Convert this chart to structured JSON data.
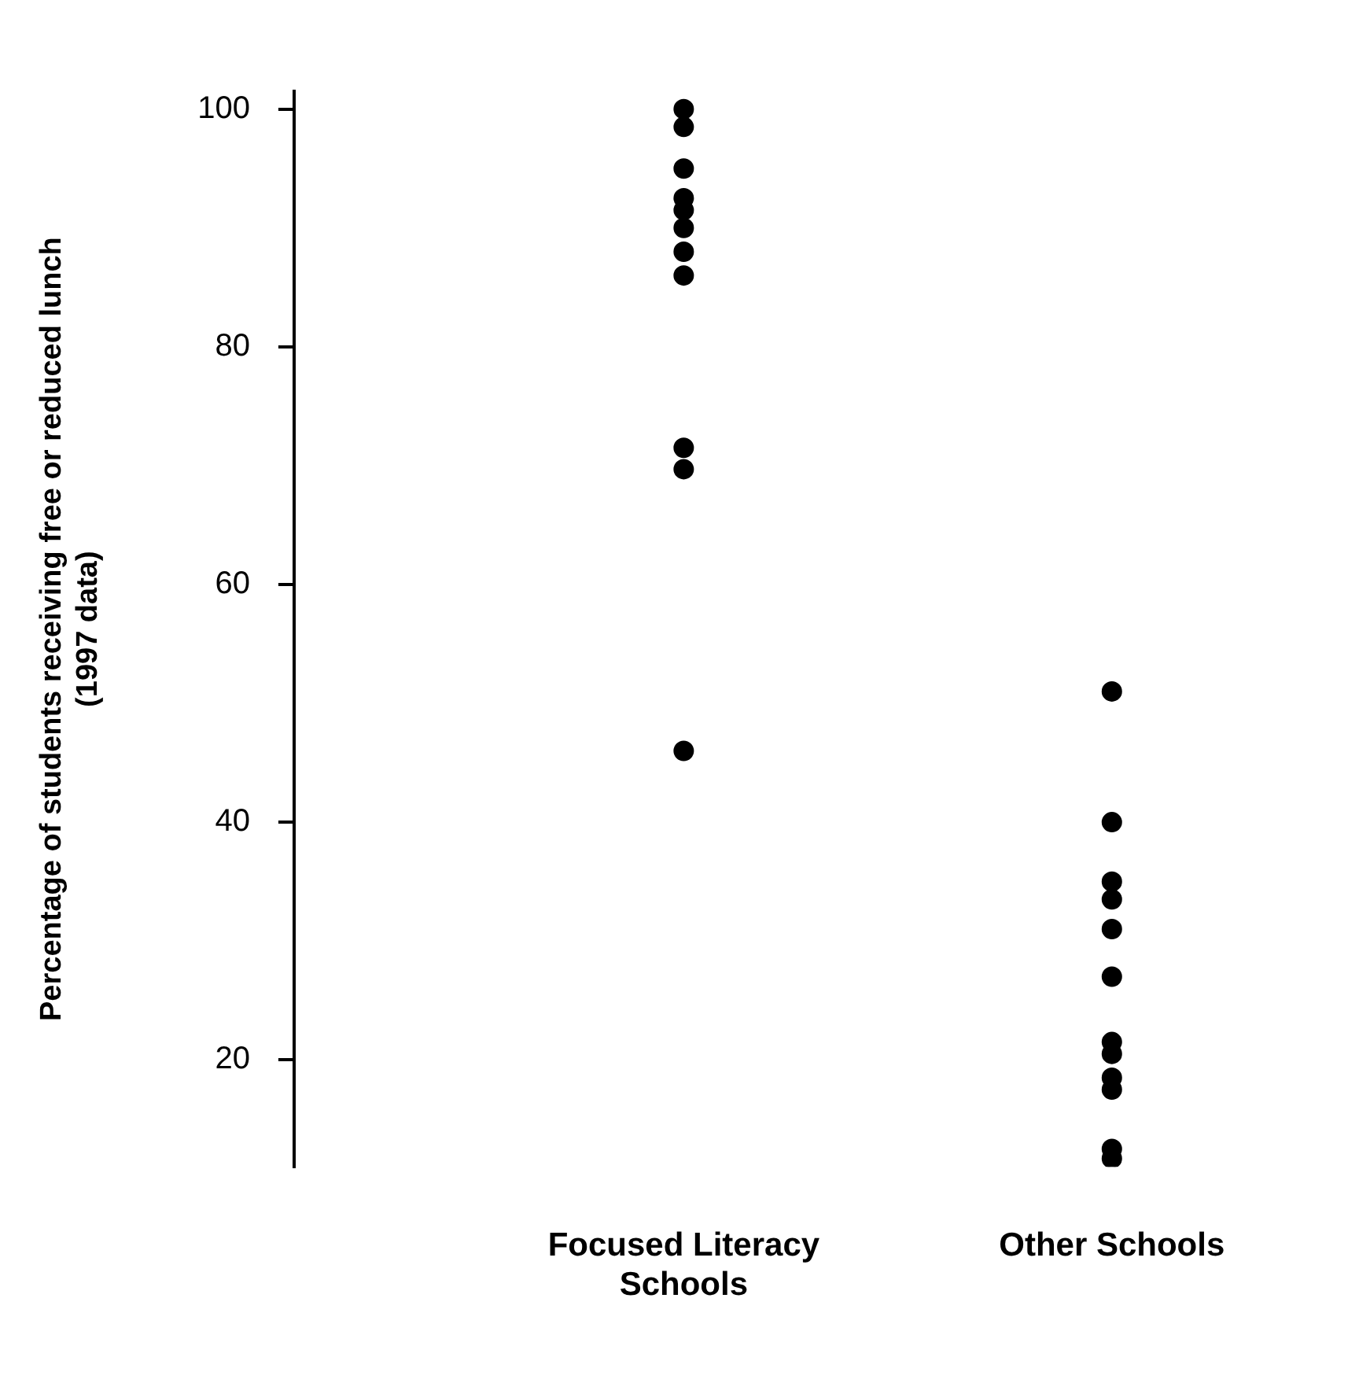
{
  "chart_data": {
    "type": "scatter",
    "ylabel": "Percentage of students receiving free or reduced lunch (1997 data)",
    "categories": [
      "Focused Literacy Schools",
      "Other Schools"
    ],
    "series": [
      {
        "color": "#000000",
        "x": [
          "Focused Literacy Schools",
          "Focused Literacy Schools",
          "Focused Literacy Schools",
          "Focused Literacy Schools",
          "Focused Literacy Schools",
          "Focused Literacy Schools",
          "Focused Literacy Schools",
          "Focused Literacy Schools",
          "Focused Literacy Schools",
          "Focused Literacy Schools",
          "Focused Literacy Schools",
          "Other Schools",
          "Other Schools",
          "Other Schools",
          "Other Schools",
          "Other Schools",
          "Other Schools",
          "Other Schools",
          "Other Schools",
          "Other Schools",
          "Other Schools",
          "Other Schools",
          "Other Schools"
        ],
        "values": [
          100,
          98.5,
          95,
          92.5,
          91.5,
          90,
          88,
          86,
          71.5,
          69.7,
          46,
          51,
          40,
          35,
          33.5,
          31,
          27,
          21.5,
          20.5,
          18.5,
          17.5,
          12.5,
          11.7
        ]
      }
    ],
    "ylim": [
      11,
      101.5
    ],
    "yticks": [
      20,
      40,
      60,
      80,
      100
    ],
    "grid": false,
    "legend": false,
    "marker": "circle"
  }
}
